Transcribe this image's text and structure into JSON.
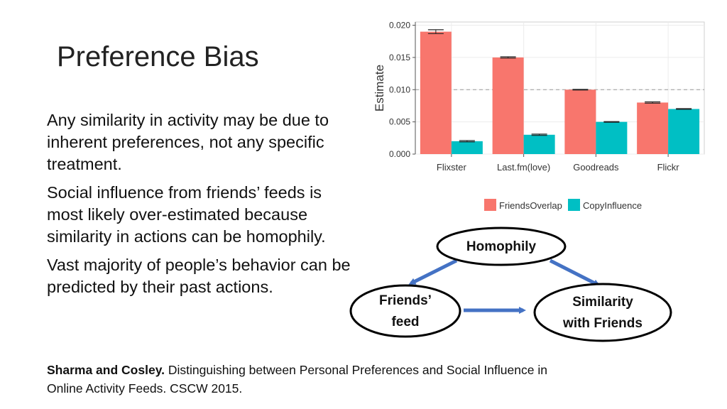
{
  "slide": {
    "title": "Preference Bias",
    "bullets": [
      "Any similarity in activity may be due to inherent preferences, not any specific treatment.",
      "Social influence from friends’ feeds is most likely over-estimated because similarity in actions can be homophily.",
      "Vast majority of people’s behavior can be predicted by their past actions."
    ],
    "citation": {
      "authors": "Sharma and Cosley.",
      "text": " Distinguishing between Personal Preferences and Social Influence in Online Activity Feeds. CSCW 2015."
    }
  },
  "chart_data": {
    "type": "bar",
    "categories": [
      "Flixster",
      "Last.fm(love)",
      "Goodreads",
      "Flickr"
    ],
    "series": [
      {
        "name": "FriendsOverlap",
        "values": [
          0.019,
          0.015,
          0.01,
          0.008
        ],
        "errors": [
          0.0003,
          0.0001,
          5e-05,
          0.0001
        ],
        "color": "#F8766D"
      },
      {
        "name": "CopyInfluence",
        "values": [
          0.002,
          0.003,
          0.005,
          0.007
        ],
        "errors": [
          0.0001,
          0.0001,
          5e-05,
          5e-05
        ],
        "color": "#00BFC4"
      }
    ],
    "title": "",
    "xlabel": "",
    "ylabel": "Estimate",
    "ylim": [
      0,
      0.0205
    ],
    "yticks": [
      "0.000",
      "0.005",
      "0.010",
      "0.015",
      "0.020"
    ],
    "reference_line": 0.01,
    "grid": true,
    "legend_position": "bottom"
  },
  "diagram": {
    "nodes": [
      {
        "id": "homophily",
        "lines": [
          "Homophily"
        ]
      },
      {
        "id": "friends-feed",
        "lines": [
          "Friends’",
          "feed"
        ]
      },
      {
        "id": "similarity",
        "lines": [
          "Similarity",
          "with Friends"
        ]
      }
    ],
    "arrow_color": "#4472C4"
  }
}
